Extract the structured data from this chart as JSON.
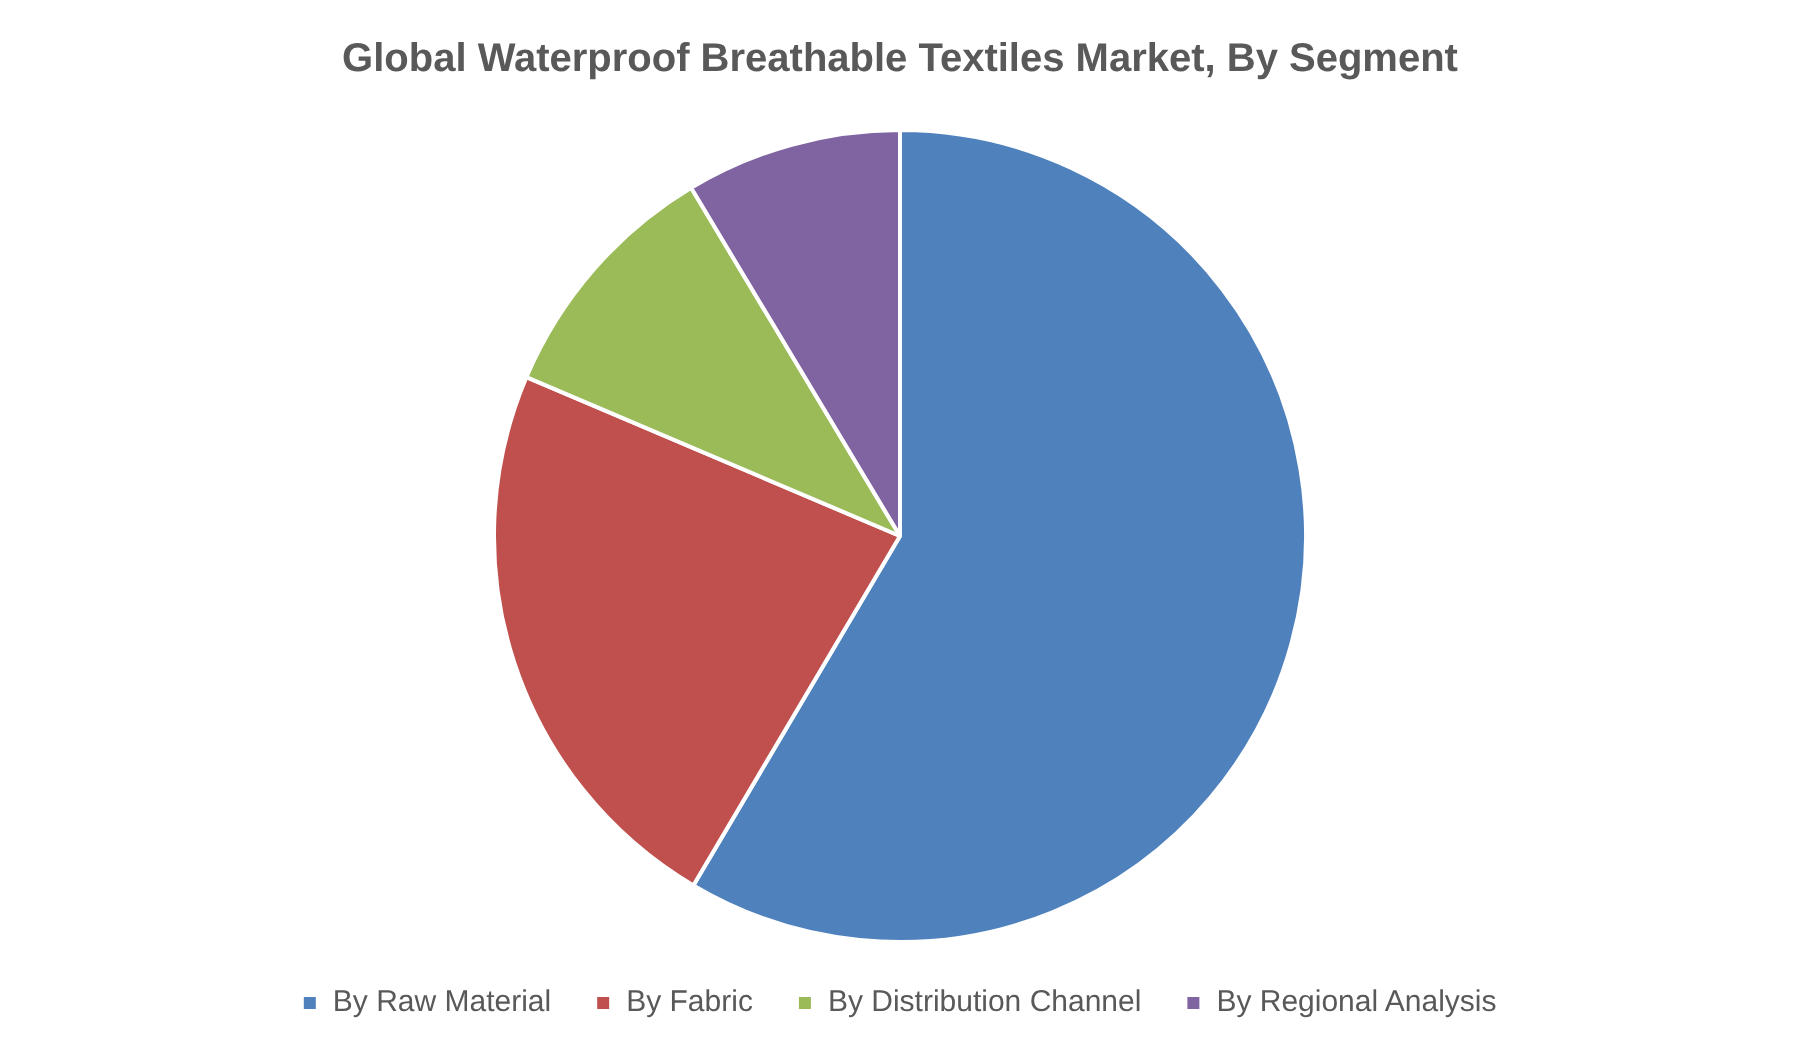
{
  "chart_data": {
    "type": "pie",
    "title": "Global Waterproof Breathable Textiles Market, By Segment",
    "categories": [
      "By Raw Material",
      "By Fabric",
      "By Distribution Channel",
      "By Regional Analysis"
    ],
    "values": [
      58.5,
      22.9,
      10,
      8.6
    ],
    "colors": [
      "#4f81bd",
      "#c0504d",
      "#9bbb59",
      "#8064a2"
    ],
    "legend": "bottom"
  }
}
